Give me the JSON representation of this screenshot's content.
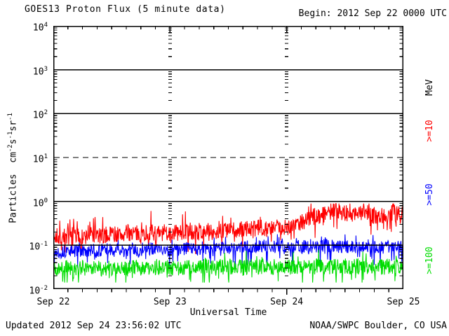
{
  "title": "GOES13 Proton Flux (5 minute data)",
  "begin_label": "Begin: 2012 Sep 22 0000 UTC",
  "footer": {
    "updated": "Updated 2012 Sep 24 23:56:02 UTC",
    "source": "NOAA/SWPC Boulder, CO USA"
  },
  "chart_data": {
    "type": "line",
    "title": "GOES13 Proton Flux (5 minute data)",
    "xlabel": "Universal Time",
    "ylabel": "Particles cm-2 s-1 sr-1",
    "ylabel_segments": [
      {
        "text": "Particles  cm"
      },
      {
        "sup": "-2"
      },
      {
        "text": "s"
      },
      {
        "sup": "-1"
      },
      {
        "text": "sr"
      },
      {
        "sup": "-1"
      }
    ],
    "y_scale": "log",
    "y_tick_exponents": [
      4,
      3,
      2,
      1,
      0,
      -1,
      -2
    ],
    "ylim": [
      0.01,
      10000
    ],
    "x_tick_labels": [
      "Sep 22",
      "Sep 23",
      "Sep 24",
      "Sep 25"
    ],
    "x_range": {
      "start": "2012 Sep 22 0000 UTC",
      "end": "2012 Sep 25 0000 UTC",
      "hours": 72
    },
    "points_per_hour": 12,
    "minor_ticks_hours": 3,
    "grid": {
      "solid_hline_exponents": [
        3,
        2,
        0,
        -1
      ],
      "dashed_hline_exponents": [
        1
      ],
      "vertical_dash_columns_hours": [
        24,
        48
      ]
    },
    "legend": {
      "unit": "MeV",
      "unit_color": "#000000",
      "entries": [
        {
          "label": ">=10",
          "color": "#ff0000"
        },
        {
          "label": ">=50",
          "color": "#0000ff"
        },
        {
          "label": ">=100",
          "color": "#00dd00"
        }
      ]
    },
    "series": [
      {
        "name": ">=10 MeV",
        "color": "#ff0000",
        "seed": 7,
        "noise_log10": 0.2,
        "spike_down_p": 0.05,
        "spike_down": 0.3,
        "spike_up_p": 0.04,
        "spike_up": 0.28,
        "clamp_min_log10": -1.2,
        "clamp_max_log10": -0.05,
        "hourly_log10": [
          -0.85,
          -0.8,
          -0.78,
          -0.82,
          -0.76,
          -0.8,
          -0.84,
          -0.79,
          -0.75,
          -0.78,
          -0.81,
          -0.76,
          -0.72,
          -0.75,
          -0.78,
          -0.73,
          -0.7,
          -0.74,
          -0.77,
          -0.72,
          -0.69,
          -0.73,
          -0.76,
          -0.71,
          -0.72,
          -0.7,
          -0.73,
          -0.69,
          -0.67,
          -0.71,
          -0.69,
          -0.66,
          -0.7,
          -0.72,
          -0.68,
          -0.65,
          -0.68,
          -0.66,
          -0.69,
          -0.64,
          -0.61,
          -0.65,
          -0.62,
          -0.58,
          -0.62,
          -0.64,
          -0.6,
          -0.56,
          -0.58,
          -0.55,
          -0.5,
          -0.46,
          -0.42,
          -0.38,
          -0.34,
          -0.3,
          -0.27,
          -0.22,
          -0.18,
          -0.21,
          -0.26,
          -0.34,
          -0.29,
          -0.24,
          -0.29,
          -0.27,
          -0.34,
          -0.3,
          -0.32,
          -0.29,
          -0.27,
          -0.31,
          -0.29
        ]
      },
      {
        "name": ">=50 MeV",
        "color": "#0000ff",
        "seed": 13,
        "noise_log10": 0.15,
        "spike_down_p": 0.05,
        "spike_down": 0.3,
        "spike_up_p": 0.03,
        "spike_up": 0.15,
        "clamp_min_log10": -1.55,
        "clamp_max_log10": -0.75,
        "hourly_log10": [
          -1.18,
          -1.14,
          -1.16,
          -1.12,
          -1.15,
          -1.1,
          -1.13,
          -1.16,
          -1.11,
          -1.14,
          -1.12,
          -1.09,
          -1.13,
          -1.1,
          -1.14,
          -1.11,
          -1.08,
          -1.12,
          -1.15,
          -1.1,
          -1.07,
          -1.11,
          -1.13,
          -1.09,
          -1.12,
          -1.08,
          -1.12,
          -1.09,
          -1.06,
          -1.1,
          -1.08,
          -1.05,
          -1.09,
          -1.11,
          -1.07,
          -1.04,
          -1.08,
          -1.06,
          -1.09,
          -1.05,
          -1.02,
          -1.06,
          -1.04,
          -1.0,
          -1.04,
          -1.06,
          -1.02,
          -0.99,
          -1.02,
          -1.04,
          -1.02,
          -1.05,
          -1.03,
          -1.0,
          -1.04,
          -1.02,
          -0.99,
          -1.03,
          -1.01,
          -1.04,
          -1.02,
          -1.05,
          -1.02,
          -1.0,
          -1.03,
          -1.01,
          -1.04,
          -1.02,
          -1.05,
          -1.03,
          -1.0,
          -1.02,
          -1.01
        ]
      },
      {
        "name": ">=100 MeV",
        "color": "#00dd00",
        "seed": 21,
        "noise_log10": 0.18,
        "spike_down_p": 0.06,
        "spike_down": 0.28,
        "spike_up_p": 0.03,
        "spike_up": 0.25,
        "clamp_min_log10": -1.85,
        "clamp_max_log10": -1.05,
        "hourly_log10": [
          -1.55,
          -1.52,
          -1.54,
          -1.5,
          -1.53,
          -1.56,
          -1.51,
          -1.54,
          -1.52,
          -1.49,
          -1.53,
          -1.55,
          -1.51,
          -1.53,
          -1.5,
          -1.54,
          -1.51,
          -1.48,
          -1.52,
          -1.55,
          -1.5,
          -1.53,
          -1.51,
          -1.49,
          -1.52,
          -1.5,
          -1.53,
          -1.49,
          -1.52,
          -1.54,
          -1.5,
          -1.47,
          -1.51,
          -1.53,
          -1.49,
          -1.52,
          -1.5,
          -1.52,
          -1.49,
          -1.53,
          -1.5,
          -1.47,
          -1.51,
          -1.48,
          -1.52,
          -1.5,
          -1.46,
          -1.49,
          -1.51,
          -1.48,
          -1.51,
          -1.47,
          -1.5,
          -1.52,
          -1.48,
          -1.45,
          -1.49,
          -1.51,
          -1.47,
          -1.5,
          -1.48,
          -1.51,
          -1.48,
          -1.46,
          -1.49,
          -1.47,
          -1.5,
          -1.48,
          -1.51,
          -1.49,
          -1.46,
          -1.48,
          -1.47
        ]
      }
    ]
  }
}
